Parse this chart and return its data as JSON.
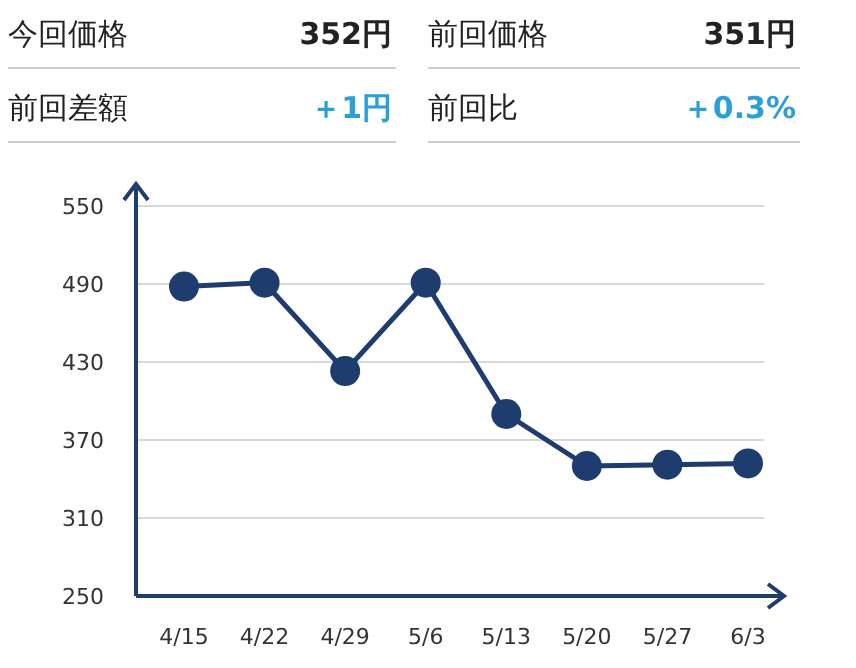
{
  "chart_data": [
    {
      "type": "other",
      "annotations": [
        "今回価格",
        "352円",
        "前回価格",
        "351円",
        "前回差額",
        "＋1円",
        "前回比",
        "＋0.3%"
      ]
    },
    {
      "type": "line",
      "categories": [
        "4/15",
        "4/22",
        "4/29",
        "5/6",
        "5/13",
        "5/20",
        "5/27",
        "6/3"
      ],
      "series": [
        {
          "color": "#1f3c6e",
          "values": [
            488,
            491,
            423,
            491,
            390,
            350,
            351,
            352
          ]
        }
      ],
      "ylim": [
        250,
        550
      ],
      "yticks": [
        250,
        310,
        370,
        430,
        490,
        550
      ],
      "grid": "y",
      "marker": "circle"
    }
  ]
}
